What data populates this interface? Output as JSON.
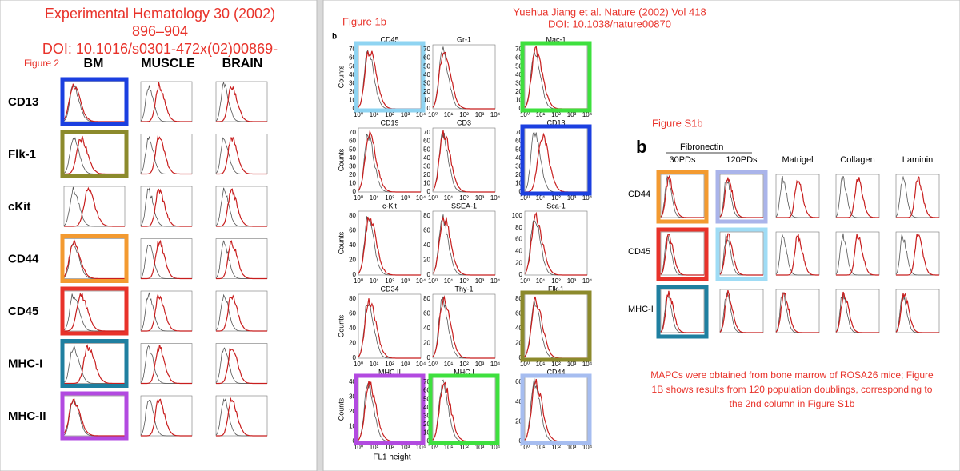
{
  "left": {
    "title_lines": [
      "Experimental Hematology 30 (2002)",
      "896–904",
      "DOI: 10.1016/s0301-472x(02)00869-"
    ],
    "figure_label": "Figure 2",
    "columns": [
      "BM",
      "MUSCLE",
      "BRAIN"
    ],
    "rows": [
      {
        "label": "CD13",
        "box": "#1b3fe0"
      },
      {
        "label": "Flk-1",
        "box": "#8c8a2c"
      },
      {
        "label": "cKit",
        "box": null
      },
      {
        "label": "CD44",
        "box": "#f39a30"
      },
      {
        "label": "CD45",
        "box": "#e8322a"
      },
      {
        "label": "MHC-I",
        "box": "#1f7fa0"
      },
      {
        "label": "MHC-II",
        "box": "#b24ae0"
      }
    ]
  },
  "middle": {
    "header_lines": [
      "Yuehua Jiang et al. Nature (2002) Vol 418",
      "DOI: 10.1038/nature00870"
    ],
    "figure_label": "Figure 1b",
    "panel_letter": "b",
    "y_axis_label": "Counts",
    "x_axis_label": "FL1 height",
    "x_ticks": [
      "10⁰",
      "10¹",
      "10²",
      "10³",
      "10⁴"
    ],
    "panels": [
      {
        "label": "CD45",
        "box": "#8fd4f2",
        "yticks": [
          0,
          10,
          20,
          30,
          40,
          50,
          60,
          70
        ]
      },
      {
        "label": "Gr-1",
        "box": null,
        "yticks": [
          0,
          10,
          20,
          30,
          40,
          50,
          60,
          70
        ]
      },
      {
        "label": "Mac-1",
        "box": "#3ee03e",
        "yticks": [
          0,
          10,
          20,
          30,
          40,
          50,
          60,
          70
        ]
      },
      {
        "label": "CD19",
        "box": null,
        "yticks": [
          0,
          10,
          20,
          30,
          40,
          50,
          60,
          70
        ]
      },
      {
        "label": "CD3",
        "box": null,
        "yticks": [
          0,
          10,
          20,
          30,
          40,
          50,
          60,
          70
        ]
      },
      {
        "label": "CD13",
        "box": "#1b3fe0",
        "yticks": [
          0,
          10,
          20,
          30,
          40,
          50,
          60,
          70
        ]
      },
      {
        "label": "c-Kit",
        "box": null,
        "yticks": [
          0,
          20,
          40,
          60,
          80
        ]
      },
      {
        "label": "SSEA-1",
        "box": null,
        "yticks": [
          0,
          20,
          40,
          60,
          80
        ]
      },
      {
        "label": "Sca-1",
        "box": null,
        "yticks": [
          0,
          20,
          40,
          60,
          80,
          100
        ]
      },
      {
        "label": "CD34",
        "box": null,
        "yticks": [
          0,
          20,
          40,
          60,
          80
        ]
      },
      {
        "label": "Thy-1",
        "box": null,
        "yticks": [
          0,
          20,
          40,
          60,
          80
        ]
      },
      {
        "label": "Flk-1",
        "box": "#8c8a2c",
        "yticks": [
          0,
          20,
          40,
          60,
          80
        ]
      },
      {
        "label": "MHC II",
        "box": "#b24ae0",
        "yticks": [
          0,
          10,
          20,
          30,
          40
        ]
      },
      {
        "label": "MHC I",
        "box": "#3ee03e",
        "yticks": [
          0,
          10,
          20,
          30,
          40,
          50,
          60,
          70
        ]
      },
      {
        "label": "CD44",
        "box": "#a6bdf0",
        "yticks": [
          0,
          20,
          40,
          60
        ]
      }
    ]
  },
  "right": {
    "figure_label": "Figure S1b",
    "panel_letter": "b",
    "group_header": "Fibronectin",
    "columns": [
      "30PDs",
      "120PDs",
      "Matrigel",
      "Collagen",
      "Laminin"
    ],
    "rows": [
      {
        "label": "CD44",
        "boxes": [
          "#f39a30",
          "#aab4ea",
          null,
          null,
          null
        ]
      },
      {
        "label": "CD45",
        "boxes": [
          "#e8322a",
          "#9fdcf5",
          null,
          null,
          null
        ]
      },
      {
        "label": "MHC-I",
        "boxes": [
          "#1f7fa0",
          null,
          null,
          null,
          null
        ]
      }
    ],
    "note_lines": [
      "MAPCs were obtained from bone marrow of ROSA26 mice; Figure",
      "1B shows results from 120 population doublings, corresponding to",
      "the 2nd column in Figure S1b"
    ]
  }
}
